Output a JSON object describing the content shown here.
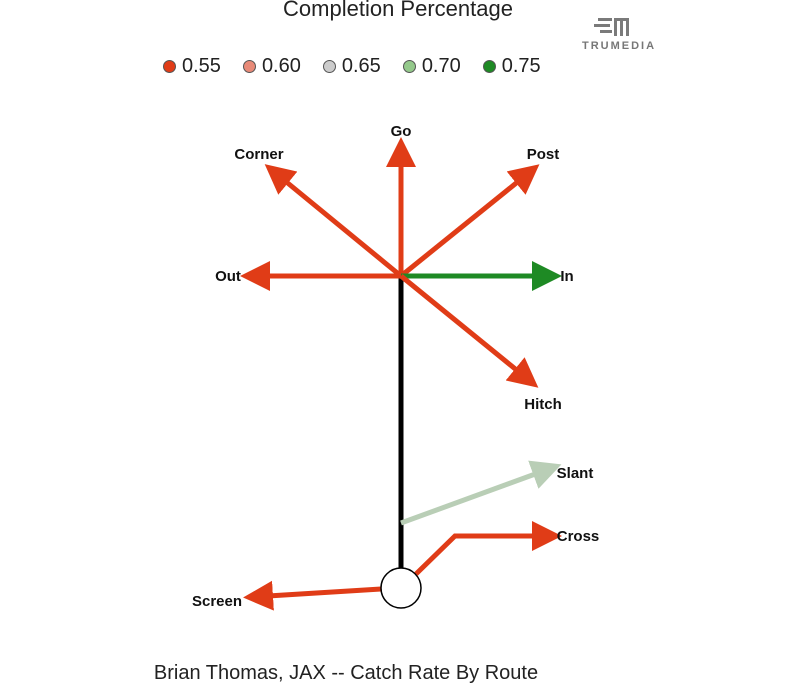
{
  "chart_data": {
    "type": "route-tree",
    "title": "Completion Percentage",
    "caption": "Brian Thomas, JAX -- Catch Rate By Route",
    "legend": [
      {
        "label": "0.55",
        "color": "#e03c17"
      },
      {
        "label": "0.60",
        "color": "#e88a78"
      },
      {
        "label": "0.65",
        "color": "#cccccc"
      },
      {
        "label": "0.70",
        "color": "#94c98b"
      },
      {
        "label": "0.75",
        "color": "#1e8a24"
      }
    ],
    "routes": [
      {
        "name": "Go",
        "color": "#e03c17"
      },
      {
        "name": "Corner",
        "color": "#e03c17"
      },
      {
        "name": "Post",
        "color": "#e03c17"
      },
      {
        "name": "Out",
        "color": "#e03c17"
      },
      {
        "name": "In",
        "color": "#1e8a24"
      },
      {
        "name": "Hitch",
        "color": "#e03c17"
      },
      {
        "name": "Slant",
        "color": "#b9ceb6"
      },
      {
        "name": "Cross",
        "color": "#e03c17"
      },
      {
        "name": "Screen",
        "color": "#e03c17"
      }
    ]
  },
  "logo": {
    "text": "TRUMEDIA"
  }
}
